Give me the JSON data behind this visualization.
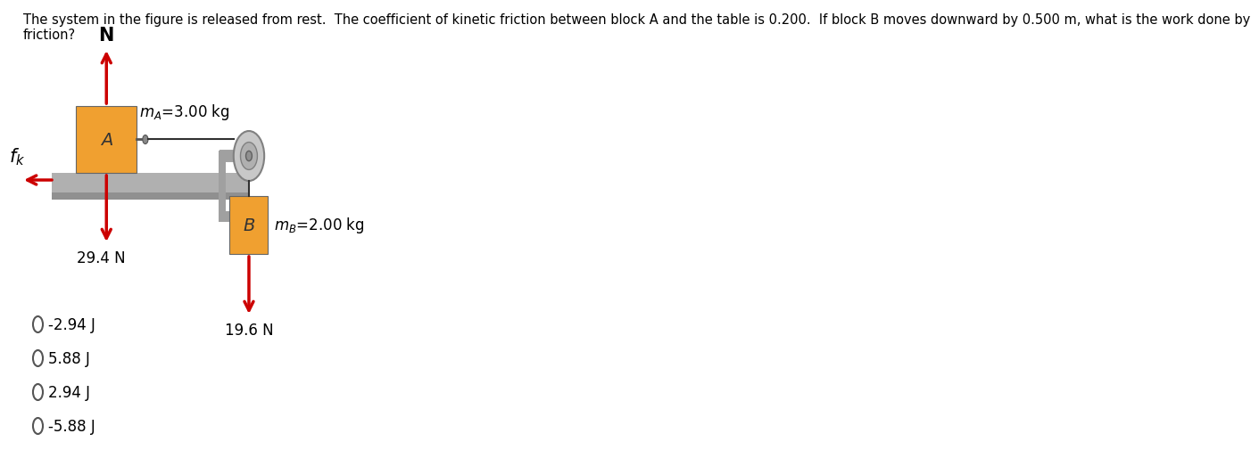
{
  "title_text": "The system in the figure is released from rest.  The coefficient of kinetic friction between block A and the table is 0.200.  If block B moves downward by 0.500 m, what is the work done by\nfriction?",
  "block_A_label": "A",
  "block_B_label": "B",
  "mA_text": "m",
  "mA_sub": "A",
  "mA_val": "=3.00 kg",
  "mB_text": "m",
  "mB_sub": "B",
  "mB_val": "=2.00 kg",
  "N_label": "N",
  "fk_label": "f",
  "fk_sub": "k",
  "force_N_val": "29.4 N",
  "force_mg_val": "19.6 N",
  "answer_choices": [
    "-2.94 J",
    "5.88 J",
    "2.94 J",
    "-5.88 J"
  ],
  "block_A_color": "#F0A030",
  "block_B_color": "#F0A030",
  "table_color": "#B0B0B0",
  "table_dark": "#909090",
  "clamp_color": "#A0A0A0",
  "arrow_color": "#CC0000",
  "pulley_color": "#A0A0A0",
  "pulley_dark": "#808080",
  "string_color": "#303030",
  "bg_color": "#FFFFFF",
  "text_color": "#000000",
  "title_fontsize": 10.5,
  "label_fontsize": 12
}
